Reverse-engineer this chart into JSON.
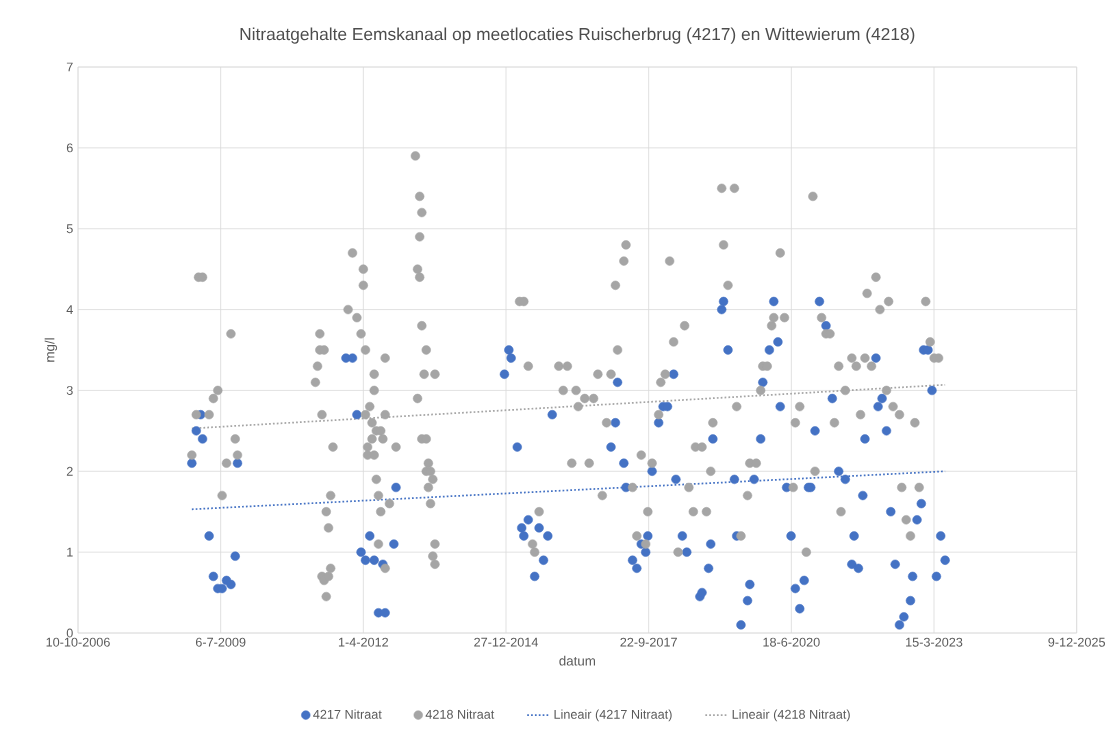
{
  "chart_data": {
    "type": "scatter",
    "title": "Nitraatgehalte Eemskanaal op meetlocaties Ruischerbrug (4217) en Wittewierum (4218)",
    "xlabel": "datum",
    "ylabel": "mg/l",
    "xlim": [
      "2006-10-10",
      "2025-12-09"
    ],
    "xticks": [
      {
        "value": "2006-10-10",
        "label": "10-10-2006"
      },
      {
        "value": "2009-07-06",
        "label": "6-7-2009"
      },
      {
        "value": "2012-04-01",
        "label": "1-4-2012"
      },
      {
        "value": "2014-12-27",
        "label": "27-12-2014"
      },
      {
        "value": "2017-09-22",
        "label": "22-9-2017"
      },
      {
        "value": "2020-06-18",
        "label": "18-6-2020"
      },
      {
        "value": "2023-03-15",
        "label": "15-3-2023"
      },
      {
        "value": "2025-12-09",
        "label": "9-12-2025"
      }
    ],
    "ylim": [
      0,
      7
    ],
    "yticks": [
      0,
      1,
      2,
      3,
      4,
      5,
      6,
      7
    ],
    "grid": true,
    "legend": "bottom",
    "series": [
      {
        "name": "4217 Nitraat",
        "marker": "circle",
        "color": "#4472c4",
        "x": [
          "2008-12-16",
          "2009-01-16",
          "2009-02-16",
          "2009-03-01",
          "2009-04-16",
          "2009-05-16",
          "2009-06-16",
          "2009-07-16",
          "2009-08-16",
          "2009-09-16",
          "2009-10-16",
          "2009-11-01",
          "2011-12-01",
          "2012-01-16",
          "2012-02-16",
          "2012-03-16",
          "2012-04-16",
          "2012-05-16",
          "2012-06-16",
          "2012-07-16",
          "2012-08-16",
          "2012-09-01",
          "2012-11-01",
          "2012-11-16",
          "2014-12-16",
          "2015-01-16",
          "2015-02-01",
          "2015-03-16",
          "2015-04-16",
          "2015-05-01",
          "2015-06-01",
          "2015-07-16",
          "2015-08-16",
          "2015-09-16",
          "2015-10-16",
          "2015-11-16",
          "2017-01-01",
          "2017-02-01",
          "2017-02-16",
          "2017-04-01",
          "2017-04-16",
          "2017-06-01",
          "2017-07-01",
          "2017-08-01",
          "2017-09-01",
          "2017-09-16",
          "2017-10-16",
          "2017-12-01",
          "2018-01-01",
          "2018-02-01",
          "2018-03-16",
          "2018-04-01",
          "2018-05-16",
          "2018-06-16",
          "2018-09-16",
          "2018-10-01",
          "2018-11-16",
          "2018-12-01",
          "2018-12-16",
          "2019-02-16",
          "2019-03-01",
          "2019-04-01",
          "2019-05-16",
          "2019-06-01",
          "2019-07-01",
          "2019-08-16",
          "2019-09-01",
          "2019-10-01",
          "2019-11-16",
          "2019-12-01",
          "2020-01-16",
          "2020-02-16",
          "2020-03-16",
          "2020-04-01",
          "2020-05-16",
          "2020-06-16",
          "2020-07-16",
          "2020-08-16",
          "2020-09-16",
          "2020-10-16",
          "2020-11-01",
          "2020-12-01",
          "2021-01-01",
          "2021-02-16",
          "2021-04-01",
          "2021-05-16",
          "2021-07-01",
          "2021-08-16",
          "2021-09-01",
          "2021-10-01",
          "2021-11-01",
          "2021-11-16",
          "2022-02-01",
          "2022-02-16",
          "2022-03-16",
          "2022-04-16",
          "2022-05-16",
          "2022-06-16",
          "2022-07-16",
          "2022-08-16",
          "2022-10-01",
          "2022-10-16",
          "2022-11-16",
          "2022-12-16",
          "2023-01-01",
          "2023-02-01",
          "2023-03-01",
          "2023-04-01",
          "2023-05-01",
          "2023-06-01"
        ],
        "values": [
          2.1,
          2.5,
          2.7,
          2.4,
          1.2,
          0.7,
          0.55,
          0.55,
          0.65,
          0.6,
          0.95,
          2.1,
          3.4,
          3.4,
          2.7,
          1.0,
          0.9,
          1.2,
          0.9,
          0.25,
          0.85,
          0.25,
          1.1,
          1.8,
          3.2,
          3.5,
          3.4,
          2.3,
          1.3,
          1.2,
          1.4,
          0.7,
          1.3,
          0.9,
          1.2,
          2.7,
          2.3,
          2.6,
          3.1,
          2.1,
          1.8,
          0.9,
          0.8,
          1.1,
          1.0,
          1.2,
          2.0,
          2.6,
          2.8,
          2.8,
          3.2,
          1.9,
          1.2,
          1.0,
          0.45,
          0.5,
          0.8,
          1.1,
          2.4,
          4.0,
          4.1,
          3.5,
          1.9,
          1.2,
          0.1,
          0.4,
          0.6,
          1.9,
          2.4,
          3.1,
          3.5,
          4.1,
          3.6,
          2.8,
          1.8,
          1.2,
          0.55,
          0.3,
          0.65,
          1.8,
          1.8,
          2.5,
          4.1,
          3.8,
          2.9,
          2.0,
          1.9,
          0.85,
          1.2,
          0.8,
          1.7,
          2.4,
          3.4,
          2.8,
          2.9,
          2.5,
          1.5,
          0.85,
          0.1,
          0.2,
          0.4,
          0.7,
          1.4,
          1.6,
          3.5,
          3.5,
          3.0,
          0.7,
          1.2,
          0.9
        ]
      },
      {
        "name": "4218 Nitraat",
        "marker": "circle",
        "color": "#a5a5a5",
        "x": [
          "2008-12-16",
          "2009-01-16",
          "2009-02-01",
          "2009-03-01",
          "2009-04-16",
          "2009-05-16",
          "2009-06-16",
          "2009-07-16",
          "2009-08-16",
          "2009-09-16",
          "2009-10-16",
          "2009-11-01",
          "2011-05-01",
          "2011-05-16",
          "2011-06-01",
          "2011-06-01",
          "2011-06-16",
          "2011-07-01",
          "2011-06-16",
          "2011-07-01",
          "2011-07-16",
          "2011-07-16",
          "2011-08-01",
          "2011-08-01",
          "2011-08-16",
          "2011-08-16",
          "2011-09-01",
          "2011-12-16",
          "2012-01-16",
          "2012-02-16",
          "2012-03-16",
          "2012-04-01",
          "2012-04-01",
          "2012-04-16",
          "2012-04-16",
          "2012-05-01",
          "2012-05-01",
          "2012-05-16",
          "2012-06-01",
          "2012-06-01",
          "2012-06-16",
          "2012-06-16",
          "2012-06-16",
          "2012-07-01",
          "2012-07-01",
          "2012-07-16",
          "2012-07-16",
          "2012-08-01",
          "2012-08-01",
          "2012-08-16",
          "2012-09-01",
          "2012-09-01",
          "2012-09-01",
          "2012-10-01",
          "2012-11-16",
          "2013-04-01",
          "2013-04-16",
          "2013-04-16",
          "2013-05-01",
          "2013-05-01",
          "2013-05-01",
          "2013-05-16",
          "2013-05-16",
          "2013-05-16",
          "2013-06-01",
          "2013-06-16",
          "2013-06-16",
          "2013-06-16",
          "2013-07-01",
          "2013-07-01",
          "2013-07-16",
          "2013-07-16",
          "2013-08-01",
          "2013-08-01",
          "2013-08-16",
          "2013-08-16",
          "2013-08-16",
          "2015-04-01",
          "2015-05-01",
          "2015-06-01",
          "2015-07-01",
          "2015-07-16",
          "2015-08-16",
          "2016-01-01",
          "2016-02-01",
          "2016-03-01",
          "2016-04-01",
          "2016-05-01",
          "2016-05-16",
          "2016-07-01",
          "2016-08-01",
          "2016-09-01",
          "2016-10-01",
          "2016-11-01",
          "2016-12-01",
          "2017-01-01",
          "2017-02-01",
          "2017-02-16",
          "2017-04-01",
          "2017-04-16",
          "2017-06-01",
          "2017-07-01",
          "2017-08-01",
          "2017-09-01",
          "2017-09-16",
          "2017-10-16",
          "2017-12-01",
          "2017-12-16",
          "2018-01-16",
          "2018-02-16",
          "2018-03-16",
          "2018-04-16",
          "2018-06-01",
          "2018-07-01",
          "2018-08-01",
          "2018-08-16",
          "2018-10-01",
          "2018-11-01",
          "2018-12-01",
          "2018-12-16",
          "2019-02-16",
          "2019-03-01",
          "2019-04-01",
          "2019-05-16",
          "2019-06-01",
          "2019-07-01",
          "2019-08-16",
          "2019-09-01",
          "2019-10-16",
          "2019-11-16",
          "2019-12-01",
          "2020-01-01",
          "2020-02-01",
          "2020-02-16",
          "2020-04-01",
          "2020-05-01",
          "2020-07-01",
          "2020-07-16",
          "2020-08-16",
          "2020-10-01",
          "2020-11-16",
          "2020-12-01",
          "2021-01-16",
          "2021-02-16",
          "2021-03-16",
          "2021-04-16",
          "2021-05-16",
          "2021-06-01",
          "2021-07-01",
          "2021-08-16",
          "2021-09-16",
          "2021-10-16",
          "2021-11-16",
          "2021-12-01",
          "2022-01-01",
          "2022-02-01",
          "2022-03-01",
          "2022-04-16",
          "2022-05-01",
          "2022-06-01",
          "2022-07-16",
          "2022-08-01",
          "2022-09-01",
          "2022-10-01",
          "2022-11-01",
          "2022-12-01",
          "2023-01-16",
          "2023-02-16",
          "2023-03-16",
          "2023-04-16"
        ],
        "values": [
          2.2,
          2.7,
          4.4,
          4.4,
          2.7,
          2.9,
          3.0,
          1.7,
          2.1,
          3.7,
          2.4,
          2.2,
          3.1,
          3.3,
          3.7,
          3.5,
          2.7,
          3.5,
          0.7,
          0.65,
          0.45,
          1.5,
          0.7,
          1.3,
          0.8,
          1.7,
          2.3,
          4.0,
          4.7,
          3.9,
          3.7,
          4.5,
          4.3,
          3.5,
          2.7,
          2.3,
          2.2,
          2.8,
          2.6,
          2.4,
          2.2,
          3.0,
          3.2,
          2.5,
          1.9,
          1.1,
          1.7,
          1.5,
          2.5,
          2.4,
          3.4,
          2.7,
          0.8,
          1.6,
          2.3,
          5.9,
          2.9,
          4.5,
          4.4,
          5.4,
          4.9,
          5.2,
          3.8,
          2.4,
          3.2,
          3.5,
          2.4,
          2.0,
          2.1,
          1.8,
          2.0,
          1.6,
          1.9,
          0.95,
          3.2,
          1.1,
          0.85,
          4.1,
          4.1,
          3.3,
          1.1,
          1.0,
          1.5,
          3.3,
          3.0,
          3.3,
          2.1,
          3.0,
          2.8,
          2.9,
          2.1,
          2.9,
          3.2,
          1.7,
          2.6,
          3.2,
          4.3,
          3.5,
          4.6,
          4.8,
          1.8,
          1.2,
          2.2,
          1.1,
          1.5,
          2.1,
          2.7,
          3.1,
          3.2,
          4.6,
          3.6,
          1.0,
          3.8,
          1.8,
          1.5,
          2.3,
          2.3,
          1.5,
          2.0,
          2.6,
          5.5,
          4.8,
          4.3,
          5.5,
          2.8,
          1.2,
          1.7,
          2.1,
          2.1,
          3.0,
          3.3,
          3.3,
          3.8,
          3.9,
          4.7,
          3.9,
          1.8,
          2.6,
          2.8,
          1.0,
          5.4,
          2.0,
          3.9,
          3.7,
          3.7,
          2.6,
          3.3,
          1.5,
          3.0,
          3.4,
          3.3,
          2.7,
          3.4,
          4.2,
          3.3,
          4.4,
          4.0,
          3.0,
          4.1,
          2.8,
          2.7,
          1.8,
          1.4,
          1.2,
          2.6,
          1.8,
          4.1,
          3.6,
          3.4,
          3.4
        ]
      },
      {
        "name": "Lineair (4217 Nitraat)",
        "type": "line",
        "marker": "none",
        "line_style": "dotted",
        "color": "#4472c4",
        "x": [
          "2008-12-16",
          "2023-06-01"
        ],
        "values": [
          1.53,
          2.0
        ]
      },
      {
        "name": "Lineair (4218 Nitraat)",
        "type": "line",
        "marker": "none",
        "line_style": "dotted",
        "color": "#a5a5a5",
        "x": [
          "2008-12-16",
          "2023-06-01"
        ],
        "values": [
          2.53,
          3.07
        ]
      }
    ]
  }
}
